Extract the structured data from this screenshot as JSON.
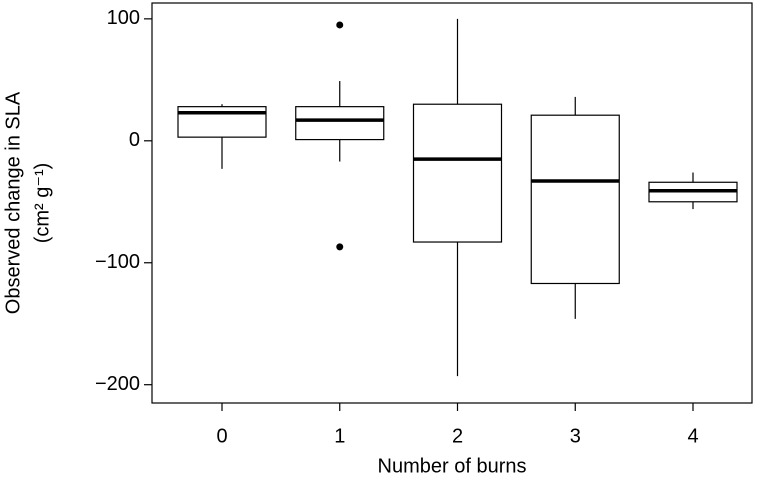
{
  "chart_data": {
    "type": "boxplot",
    "x_label": "Number of burns",
    "y_label": [
      "Observed change in SLA",
      "(cm² g⁻¹)"
    ],
    "categories": [
      "0",
      "1",
      "2",
      "3",
      "4"
    ],
    "boxes": [
      {
        "whislo": -23,
        "q1": 3,
        "median": 23,
        "q3": 28,
        "whishi": 30,
        "fliers": []
      },
      {
        "whislo": -17,
        "q1": 1,
        "median": 17,
        "q3": 28,
        "whishi": 49,
        "fliers": [
          95,
          -87
        ]
      },
      {
        "whislo": -193,
        "q1": -83,
        "median": -15,
        "q3": 30,
        "whishi": 100,
        "fliers": []
      },
      {
        "whislo": -146,
        "q1": -117,
        "median": -33,
        "q3": 21,
        "whishi": 36,
        "fliers": []
      },
      {
        "whislo": -56,
        "q1": -50,
        "median": -41,
        "q3": -34,
        "whishi": -26,
        "fliers": []
      }
    ],
    "color": "#ffffff",
    "ylim": [
      -215,
      113
    ],
    "yticks": [
      {
        "value": -200,
        "label": "−200"
      },
      {
        "value": -100,
        "label": "−100"
      },
      0,
      100
    ]
  }
}
